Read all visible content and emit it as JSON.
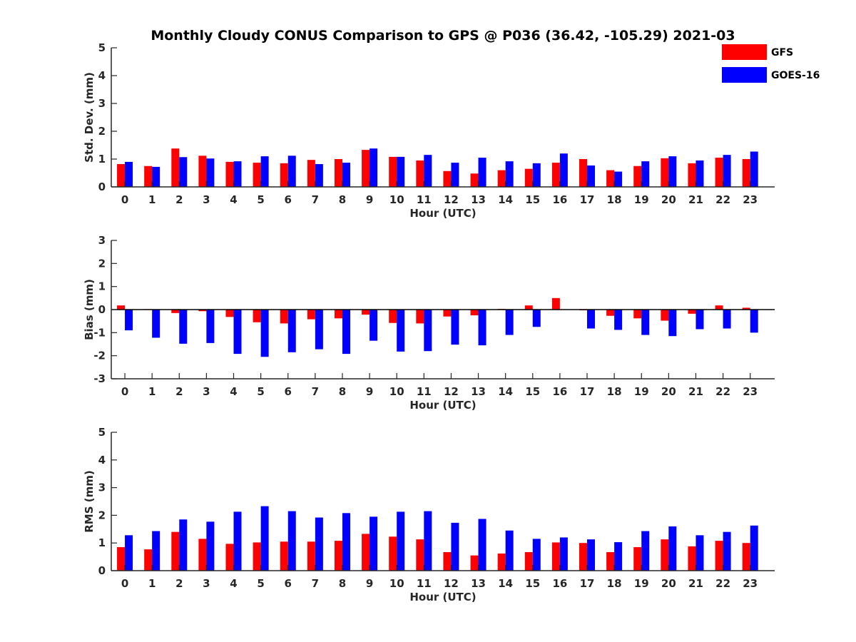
{
  "title": "Monthly Cloudy CONUS Comparison to GPS @ P036 (36.42, -105.29) 2021-03",
  "legend": {
    "placement": "top-right",
    "entries": [
      {
        "label": "GFS",
        "color": "#ff0000"
      },
      {
        "label": "GOES-16",
        "color": "#0000ff"
      }
    ]
  },
  "chart_data": [
    {
      "type": "bar",
      "xlabel": "Hour (UTC)",
      "ylabel": "Std. Dev. (mm)",
      "ylim": [
        0,
        5
      ],
      "yticks": [
        0,
        1,
        2,
        3,
        4,
        5
      ],
      "categories": [
        "0",
        "1",
        "2",
        "3",
        "4",
        "5",
        "6",
        "7",
        "8",
        "9",
        "10",
        "11",
        "12",
        "13",
        "14",
        "15",
        "16",
        "17",
        "18",
        "19",
        "20",
        "21",
        "22",
        "23"
      ],
      "series": [
        {
          "name": "GFS",
          "color": "#ff0000",
          "values": [
            0.82,
            0.75,
            1.38,
            1.12,
            0.9,
            0.87,
            0.85,
            0.97,
            1.0,
            1.33,
            1.08,
            0.95,
            0.57,
            0.48,
            0.6,
            0.65,
            0.87,
            1.0,
            0.6,
            0.75,
            1.03,
            0.85,
            1.05,
            1.0
          ]
        },
        {
          "name": "GOES-16",
          "color": "#0000ff",
          "values": [
            0.9,
            0.72,
            1.07,
            1.02,
            0.92,
            1.1,
            1.12,
            0.82,
            0.87,
            1.38,
            1.08,
            1.15,
            0.87,
            1.05,
            0.92,
            0.85,
            1.2,
            0.77,
            0.55,
            0.92,
            1.1,
            0.95,
            1.15,
            1.27
          ]
        }
      ]
    },
    {
      "type": "bar",
      "xlabel": "Hour (UTC)",
      "ylabel": "Bias (mm)",
      "ylim": [
        -3,
        3
      ],
      "yticks": [
        -3,
        -2,
        -1,
        0,
        1,
        2,
        3
      ],
      "zero_line": true,
      "categories": [
        "0",
        "1",
        "2",
        "3",
        "4",
        "5",
        "6",
        "7",
        "8",
        "9",
        "10",
        "11",
        "12",
        "13",
        "14",
        "15",
        "16",
        "17",
        "18",
        "19",
        "20",
        "21",
        "22",
        "23"
      ],
      "series": [
        {
          "name": "GFS",
          "color": "#ff0000",
          "values": [
            0.18,
            0.02,
            -0.15,
            -0.07,
            -0.32,
            -0.55,
            -0.6,
            -0.42,
            -0.38,
            -0.22,
            -0.58,
            -0.6,
            -0.3,
            -0.25,
            0.03,
            0.18,
            0.5,
            -0.03,
            -0.27,
            -0.38,
            -0.48,
            -0.18,
            0.18,
            0.08
          ]
        },
        {
          "name": "GOES-16",
          "color": "#0000ff",
          "values": [
            -0.9,
            -1.22,
            -1.48,
            -1.45,
            -1.92,
            -2.05,
            -1.85,
            -1.72,
            -1.92,
            -1.35,
            -1.82,
            -1.8,
            -1.52,
            -1.55,
            -1.1,
            -0.75,
            0.0,
            -0.82,
            -0.88,
            -1.1,
            -1.15,
            -0.85,
            -0.82,
            -1.0
          ]
        }
      ]
    },
    {
      "type": "bar",
      "xlabel": "Hour (UTC)",
      "ylabel": "RMS (mm)",
      "ylim": [
        0,
        5
      ],
      "yticks": [
        0,
        1,
        2,
        3,
        4,
        5
      ],
      "categories": [
        "0",
        "1",
        "2",
        "3",
        "4",
        "5",
        "6",
        "7",
        "8",
        "9",
        "10",
        "11",
        "12",
        "13",
        "14",
        "15",
        "16",
        "17",
        "18",
        "19",
        "20",
        "21",
        "22",
        "23"
      ],
      "series": [
        {
          "name": "GFS",
          "color": "#ff0000",
          "values": [
            0.85,
            0.77,
            1.4,
            1.15,
            0.97,
            1.02,
            1.05,
            1.05,
            1.08,
            1.33,
            1.23,
            1.13,
            0.67,
            0.55,
            0.62,
            0.67,
            1.02,
            1.0,
            0.67,
            0.85,
            1.13,
            0.88,
            1.08,
            1.0
          ]
        },
        {
          "name": "GOES-16",
          "color": "#0000ff",
          "values": [
            1.28,
            1.43,
            1.85,
            1.77,
            2.13,
            2.33,
            2.15,
            1.92,
            2.08,
            1.95,
            2.13,
            2.15,
            1.73,
            1.87,
            1.45,
            1.15,
            1.2,
            1.13,
            1.03,
            1.43,
            1.6,
            1.28,
            1.4,
            1.63
          ]
        }
      ]
    }
  ]
}
